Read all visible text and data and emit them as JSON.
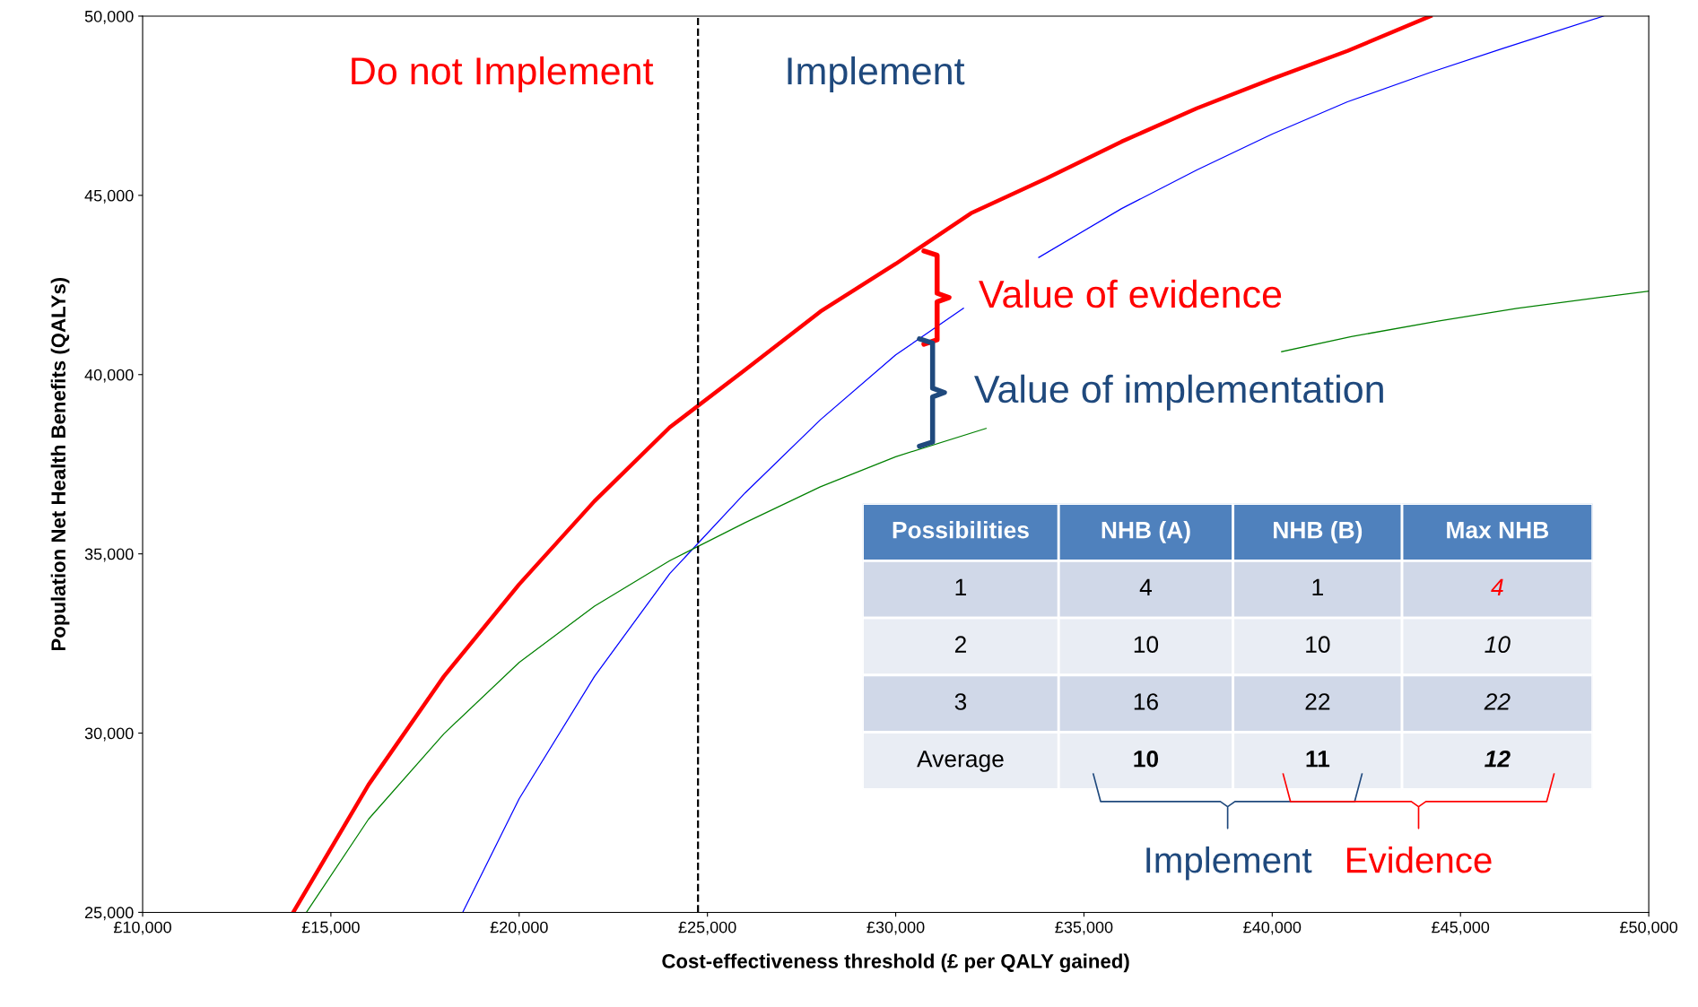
{
  "chart_data": [
    {
      "type": "line",
      "xlabel": "Cost-effectiveness threshold (£ per QALY gained)",
      "ylabel": "Population Net Health Benefits (QALYs)",
      "xlim": [
        10000,
        50000
      ],
      "ylim": [
        25000,
        50000
      ],
      "xticks": [
        {
          "value": 10000,
          "label": "£10,000"
        },
        {
          "value": 15000,
          "label": "£15,000"
        },
        {
          "value": 20000,
          "label": "£20,000"
        },
        {
          "value": 25000,
          "label": "£25,000"
        },
        {
          "value": 30000,
          "label": "£30,000"
        },
        {
          "value": 35000,
          "label": "£35,000"
        },
        {
          "value": 40000,
          "label": "£40,000"
        },
        {
          "value": 45000,
          "label": "£45,000"
        },
        {
          "value": 50000,
          "label": "£50,000"
        }
      ],
      "yticks": [
        {
          "value": 25000,
          "label": "25,000"
        },
        {
          "value": 30000,
          "label": "30,000"
        },
        {
          "value": 35000,
          "label": "35,000"
        },
        {
          "value": 40000,
          "label": "40,000"
        },
        {
          "value": 45000,
          "label": "45,000"
        },
        {
          "value": 50000,
          "label": "50,000"
        }
      ],
      "grid": false,
      "legend": false,
      "marker": "none",
      "series": [
        {
          "color": "#ff0000",
          "x": [
            14000,
            16000,
            18000,
            20000,
            22000,
            24000,
            26000,
            28000,
            30000,
            32000,
            34000,
            36000,
            38000,
            40000,
            42000,
            44200
          ],
          "values": [
            25000,
            28560,
            31580,
            34150,
            36470,
            38530,
            40130,
            41760,
            43090,
            44500,
            45470,
            46500,
            47430,
            48250,
            49030,
            50000
          ]
        },
        {
          "color": "#0000ff",
          "x": [
            18500,
            20000,
            22000,
            24000,
            26000,
            28000,
            30000,
            31800,
            32800,
            33800,
            36000,
            38000,
            40000,
            42000,
            44200,
            46100,
            48800
          ],
          "values": [
            25000,
            28170,
            31580,
            34450,
            36700,
            38740,
            40550,
            41850,
            null,
            43270,
            44630,
            45710,
            46710,
            47610,
            48430,
            49090,
            50000
          ]
        },
        {
          "color": "#008000",
          "x": [
            14350,
            16000,
            18000,
            20000,
            22000,
            24000,
            26000,
            28000,
            30000,
            32400,
            36000,
            40250,
            42100,
            44400,
            46500,
            50000
          ],
          "values": [
            25000,
            27600,
            29980,
            31970,
            33540,
            34810,
            35870,
            36870,
            37710,
            38500,
            null,
            40640,
            41060,
            41490,
            41850,
            42330
          ]
        }
      ],
      "ref_lines": [
        {
          "axis": "x",
          "value": 24750,
          "color": "#000000",
          "line_style": "dashed"
        }
      ],
      "annotations": [
        "Do not Implement",
        "Implement",
        "Value of evidence",
        "Value of implementation"
      ]
    },
    {
      "type": "other",
      "categories": [
        "Possibilities",
        "NHB (A)",
        "NHB (B)",
        "Max NHB"
      ],
      "y_categories": [
        "1",
        "2",
        "3",
        "Average"
      ],
      "cell_labels": [
        [
          "4",
          "1",
          "4"
        ],
        [
          "10",
          "10",
          "10"
        ],
        [
          "16",
          "22",
          "22"
        ],
        [
          "10",
          "11",
          "12"
        ]
      ],
      "annotations": [
        "Implement",
        "Evidence"
      ]
    }
  ]
}
